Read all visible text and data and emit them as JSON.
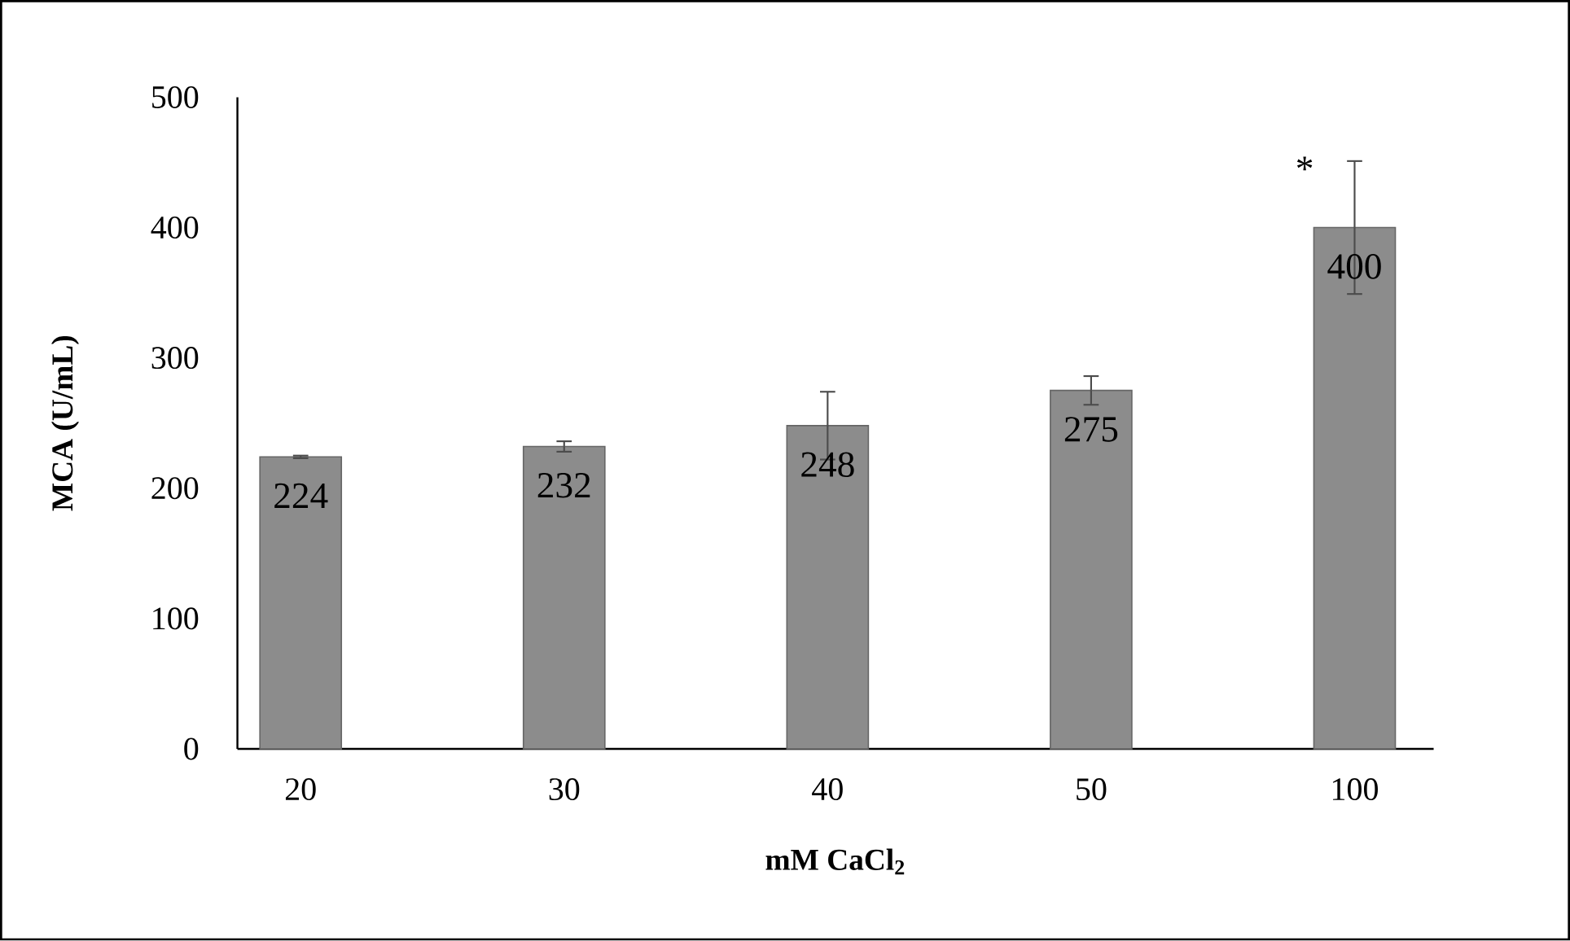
{
  "chart_data": {
    "type": "bar",
    "xlabel": "mM CaCl$_{2}$",
    "ylabel": "MCA (U/mL)",
    "categories": [
      "20",
      "30",
      "40",
      "50",
      "100"
    ],
    "values": [
      224,
      232,
      248,
      275,
      400
    ],
    "errors": [
      1,
      4,
      26,
      11,
      51
    ],
    "color": "#8c8c8c",
    "ylim": [
      0,
      500
    ],
    "yticks": [
      0,
      100,
      200,
      300,
      400,
      500
    ],
    "data_labels": true,
    "grid": false,
    "annotations": [
      {
        "text": "*",
        "x": "100",
        "y": 445
      }
    ]
  }
}
